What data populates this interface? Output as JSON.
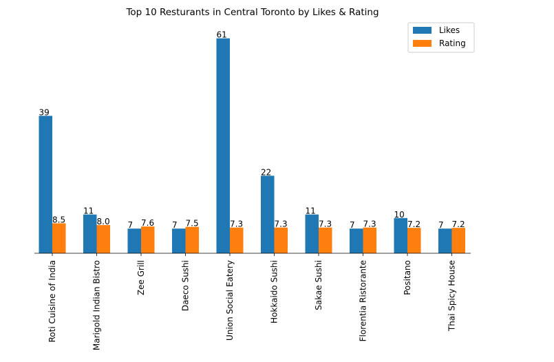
{
  "chart_data": {
    "type": "bar",
    "title": "Top 10 Resturants in Central Toronto by Likes & Rating",
    "xlabel": "",
    "ylabel": "",
    "categories": [
      "Roti Cuisine of India",
      "Marigold Indian Bistro",
      "Zee Grill",
      "Daeco Sushi",
      "Union Social Eatery",
      "Hokkaido Sushi",
      "Sakae Sushi",
      "Florentia Ristorante",
      "Positano",
      "Thai Spicy House"
    ],
    "series": [
      {
        "name": "Likes",
        "color": "#1f77b4",
        "values": [
          39,
          11,
          7,
          7,
          61,
          22,
          11,
          7,
          10,
          7
        ],
        "labels": [
          "39",
          "11",
          "7",
          "7",
          "61",
          "22",
          "11",
          "7",
          "10",
          "7"
        ]
      },
      {
        "name": "Rating",
        "color": "#ff7f0e",
        "values": [
          8.5,
          8.0,
          7.6,
          7.5,
          7.3,
          7.3,
          7.3,
          7.3,
          7.2,
          7.2
        ],
        "labels": [
          "8.5",
          "8.0",
          "7.6",
          "7.5",
          "7.3",
          "7.3",
          "7.3",
          "7.3",
          "7.2",
          "7.2"
        ]
      }
    ],
    "ylim": [
      0,
      64
    ],
    "yaxis_visible": false,
    "grid": false,
    "legend": "top-right"
  }
}
